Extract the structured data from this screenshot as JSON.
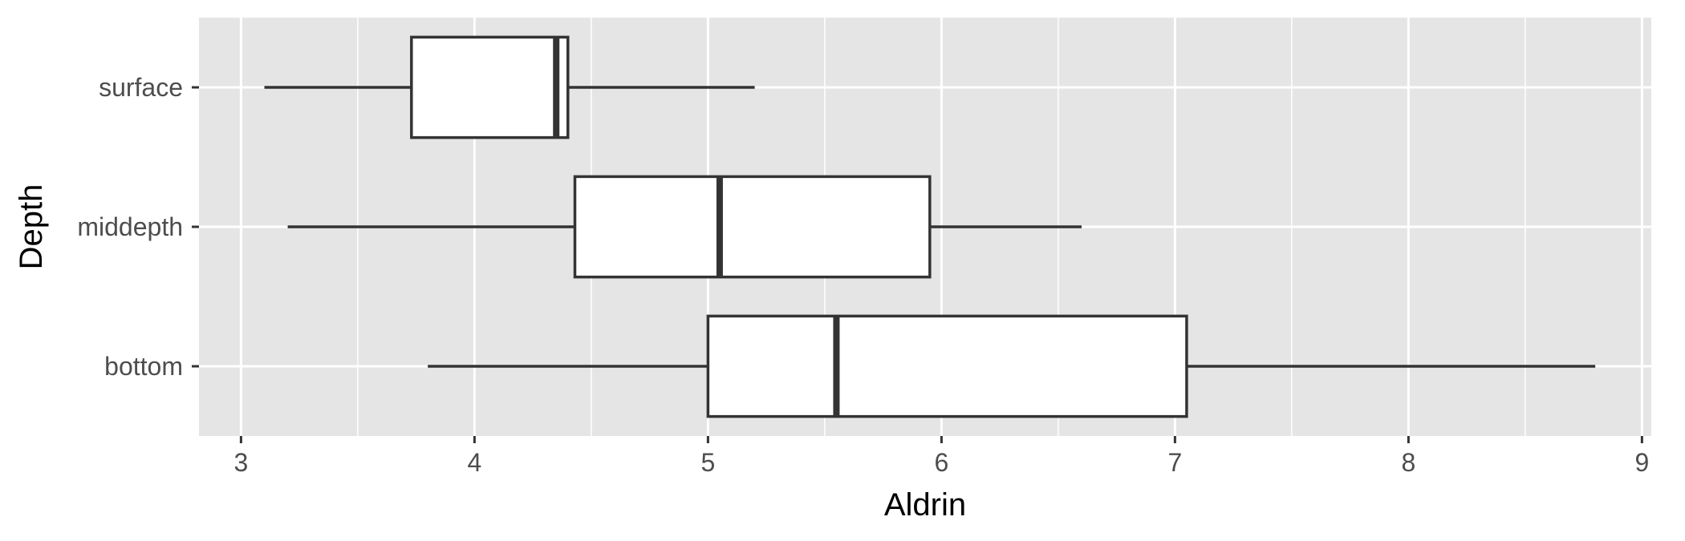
{
  "chart_data": {
    "type": "boxplot",
    "orientation": "horizontal",
    "xlabel": "Aldrin",
    "ylabel": "Depth",
    "xlim": [
      2.82,
      9.04
    ],
    "x_ticks": [
      3,
      4,
      5,
      6,
      7,
      8,
      9
    ],
    "categories": [
      "surface",
      "middepth",
      "bottom"
    ],
    "boxes": [
      {
        "category": "surface",
        "whisker_low": 3.1,
        "q1": 3.73,
        "median": 4.35,
        "q3": 4.4,
        "whisker_high": 5.2
      },
      {
        "category": "middepth",
        "whisker_low": 3.2,
        "q1": 4.43,
        "median": 5.05,
        "q3": 5.95,
        "whisker_high": 6.6
      },
      {
        "category": "bottom",
        "whisker_low": 3.8,
        "q1": 5.0,
        "median": 5.55,
        "q3": 7.05,
        "whisker_high": 8.8
      }
    ],
    "grid": true,
    "legend": "none",
    "colors": {
      "panel_background": "#e5e5e5",
      "grid_major": "#ffffff",
      "box_fill": "#ffffff",
      "box_stroke": "#333333",
      "tick_label": "#4d4d4d",
      "axis_title": "#000000"
    }
  }
}
